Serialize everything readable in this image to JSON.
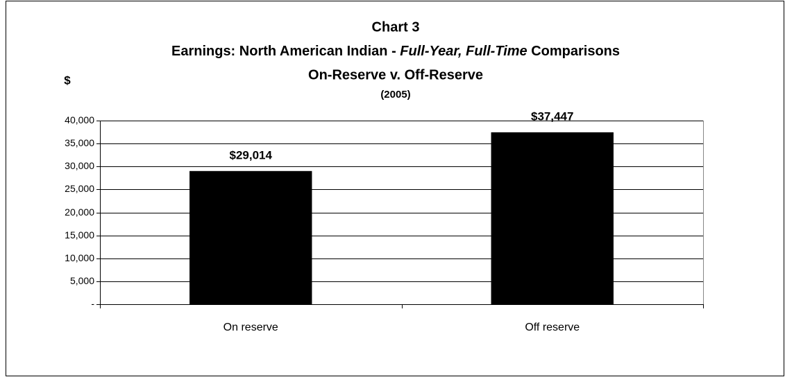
{
  "chart_data": {
    "type": "bar",
    "title": [
      "Chart 3",
      [
        "Earnings: North American Indian - ",
        "Full-Year, Full-Time",
        " Comparisons"
      ],
      "On-Reserve v. Off-Reserve"
    ],
    "subtitle": "(2005)",
    "y_label": "$",
    "categories": [
      "On reserve",
      "Off reserve"
    ],
    "values": [
      29014,
      37447
    ],
    "value_labels": [
      "$29,014",
      "$37,447"
    ],
    "color": "#000000",
    "ylim": [
      0,
      40000
    ],
    "yticks": [
      {
        "value": 0,
        "label": "-"
      },
      {
        "value": 5000,
        "label": "5,000"
      },
      {
        "value": 10000,
        "label": "10,000"
      },
      {
        "value": 15000,
        "label": "15,000"
      },
      {
        "value": 20000,
        "label": "20,000"
      },
      {
        "value": 25000,
        "label": "25,000"
      },
      {
        "value": 30000,
        "label": "30,000"
      },
      {
        "value": 35000,
        "label": "35,000"
      },
      {
        "value": 40000,
        "label": "40,000"
      }
    ],
    "grid": true
  }
}
